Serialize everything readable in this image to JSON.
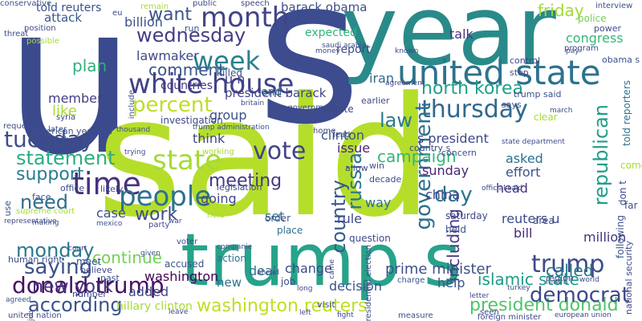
{
  "words": [
    {
      "text": "u",
      "color": "#3b4a8c",
      "vertical": false
    },
    {
      "text": "s",
      "color": "#3d4b8f",
      "vertical": false
    },
    {
      "text": "year",
      "color": "#2a8a8a",
      "vertical": false
    },
    {
      "text": "said",
      "color": "#b5de2b",
      "vertical": false
    },
    {
      "text": "trump s",
      "color": "#27a38a",
      "vertical": false
    },
    {
      "text": "told reuters",
      "color": "#3b4f8c",
      "vertical": false
    },
    {
      "text": "month",
      "color": "#414487",
      "vertical": false
    },
    {
      "text": "barack obama",
      "color": "#3d4e8a",
      "vertical": false
    },
    {
      "text": "want",
      "color": "#3a538b",
      "vertical": false
    },
    {
      "text": "wednesday",
      "color": "#433e85",
      "vertical": false
    },
    {
      "text": "week",
      "color": "#2a7f8e",
      "vertical": false
    },
    {
      "text": "united state",
      "color": "#2c728e",
      "vertical": false
    },
    {
      "text": "friday",
      "color": "#a2da37",
      "vertical": false
    },
    {
      "text": "congress",
      "color": "#34b679",
      "vertical": false
    },
    {
      "text": "white house",
      "color": "#404387",
      "vertical": false
    },
    {
      "text": "percent",
      "color": "#bddf26",
      "vertical": false
    },
    {
      "text": "north korea",
      "color": "#1fa088",
      "vertical": false
    },
    {
      "text": "thursday",
      "color": "#31688e",
      "vertical": false
    },
    {
      "text": "government",
      "color": "#2d708e",
      "vertical": true
    },
    {
      "text": "republican",
      "color": "#1f9e89",
      "vertical": true
    },
    {
      "text": "tuesday",
      "color": "#3d4d8a",
      "vertical": false
    },
    {
      "text": "state",
      "color": "#a5db36",
      "vertical": false
    },
    {
      "text": "vote",
      "color": "#414487",
      "vertical": false
    },
    {
      "text": "statement",
      "color": "#28ae80",
      "vertical": false
    },
    {
      "text": "support",
      "color": "#287c8e",
      "vertical": false
    },
    {
      "text": "time",
      "color": "#46327e",
      "vertical": false
    },
    {
      "text": "people",
      "color": "#2c718e",
      "vertical": false
    },
    {
      "text": "trump",
      "color": "#3e4c8a",
      "vertical": false
    },
    {
      "text": "donald trump",
      "color": "#471063",
      "vertical": false
    },
    {
      "text": "called",
      "color": "#2a778e",
      "vertical": false
    },
    {
      "text": "washington reuters",
      "color": "#bddf26",
      "vertical": false
    },
    {
      "text": "president donald",
      "color": "#50c46a",
      "vertical": false
    },
    {
      "text": "according",
      "color": "#3a538b",
      "vertical": false
    },
    {
      "text": "saying",
      "color": "#3b528b",
      "vertical": false
    },
    {
      "text": "new york",
      "color": "#46337e",
      "vertical": false
    },
    {
      "text": "country",
      "color": "#38598c",
      "vertical": true
    },
    {
      "text": "russia",
      "color": "#2b748e",
      "vertical": true
    },
    {
      "text": "including",
      "color": "#443983",
      "vertical": true
    },
    {
      "text": "work",
      "color": "#3e4a89",
      "vertical": false
    },
    {
      "text": "need",
      "color": "#2e6e8e",
      "vertical": false
    },
    {
      "text": "monday",
      "color": "#2a788e",
      "vertical": false
    },
    {
      "text": "day",
      "color": "#2b758e",
      "vertical": false
    },
    {
      "text": "meeting",
      "color": "#443a83",
      "vertical": false
    },
    {
      "text": "democrat",
      "color": "#3e4989",
      "vertical": false
    },
    {
      "text": "islamic state",
      "color": "#1f9a8a",
      "vertical": false
    },
    {
      "text": "plan",
      "color": "#30b07b",
      "vertical": false
    },
    {
      "text": "comment",
      "color": "#3a548c",
      "vertical": false
    },
    {
      "text": "election",
      "color": "#26828e",
      "vertical": true
    },
    {
      "text": "law",
      "color": "#2a788e",
      "vertical": false
    },
    {
      "text": "continue",
      "color": "#73d056",
      "vertical": false
    },
    {
      "text": "prime minister",
      "color": "#3b528b",
      "vertical": false
    },
    {
      "text": "talk",
      "color": "#46307e",
      "vertical": false
    },
    {
      "text": "billion",
      "color": "#3b528b",
      "vertical": false
    },
    {
      "text": "member",
      "color": "#433e85",
      "vertical": false
    },
    {
      "text": "like",
      "color": "#a8db34",
      "vertical": false
    },
    {
      "text": "attack",
      "color": "#38598c",
      "vertical": false
    },
    {
      "text": "lawmaker",
      "color": "#3e4a89",
      "vertical": false
    },
    {
      "text": "countries",
      "color": "#463480",
      "vertical": false
    },
    {
      "text": "end",
      "color": "#31678e",
      "vertical": false
    },
    {
      "text": "u n",
      "color": "#443b84",
      "vertical": false
    },
    {
      "text": "president barack",
      "color": "#414487",
      "vertical": false
    },
    {
      "text": "expected",
      "color": "#2fb47c",
      "vertical": false
    },
    {
      "text": "report",
      "color": "#3e4c8a",
      "vertical": false
    },
    {
      "text": "iran",
      "color": "#31688e",
      "vertical": false
    },
    {
      "text": "s president",
      "color": "#3f4889",
      "vertical": false
    },
    {
      "text": "clinton",
      "color": "#3b528b",
      "vertical": false
    },
    {
      "text": "issue",
      "color": "#482475",
      "vertical": false
    },
    {
      "text": "campaign",
      "color": "#34b679",
      "vertical": false
    },
    {
      "text": "sunday",
      "color": "#482576",
      "vertical": false
    },
    {
      "text": "china",
      "color": "#3e4989",
      "vertical": false
    },
    {
      "text": "rule",
      "color": "#3f4889",
      "vertical": false
    },
    {
      "text": "way",
      "color": "#2c728e",
      "vertical": false
    },
    {
      "text": "asked",
      "color": "#2c718e",
      "vertical": false
    },
    {
      "text": "head",
      "color": "#46327e",
      "vertical": false
    },
    {
      "text": "effort",
      "color": "#3b528b",
      "vertical": false
    },
    {
      "text": "reuters u",
      "color": "#3e4a89",
      "vertical": false
    },
    {
      "text": "bill",
      "color": "#482878",
      "vertical": false
    },
    {
      "text": "group",
      "color": "#3b528b",
      "vertical": false
    },
    {
      "text": "think",
      "color": "#414487",
      "vertical": false
    },
    {
      "text": "going",
      "color": "#3f4889",
      "vertical": false
    },
    {
      "text": "set",
      "color": "#2a778e",
      "vertical": false
    },
    {
      "text": "case",
      "color": "#3e4c8a",
      "vertical": false
    },
    {
      "text": "deal",
      "color": "#2c728e",
      "vertical": false
    },
    {
      "text": "change",
      "color": "#3e4989",
      "vertical": false
    },
    {
      "text": "decision",
      "color": "#3b528b",
      "vertical": false
    },
    {
      "text": "added",
      "color": "#3e4c8a",
      "vertical": false
    },
    {
      "text": "washington",
      "color": "#440154",
      "vertical": false
    },
    {
      "text": "million",
      "color": "#46327e",
      "vertical": false
    },
    {
      "text": "new",
      "color": "#2c728e",
      "vertical": false
    },
    {
      "text": "help",
      "color": "#3b528b",
      "vertical": false
    },
    {
      "text": "hillary clinton",
      "color": "#a8db34",
      "vertical": false
    },
    {
      "text": "investigation",
      "color": "#3e4989",
      "vertical": false
    },
    {
      "text": "party",
      "color": "#3f4889",
      "vertical": false
    },
    {
      "text": "order",
      "color": "#3b528b",
      "vertical": false
    },
    {
      "text": "place",
      "color": "#2c728e",
      "vertical": false
    },
    {
      "text": "question",
      "color": "#3e4989",
      "vertical": false
    },
    {
      "text": "saturday",
      "color": "#3f4889",
      "vertical": false
    },
    {
      "text": "held",
      "color": "#3b528b",
      "vertical": false
    },
    {
      "text": "area",
      "color": "#3e4c8a",
      "vertical": false
    },
    {
      "text": "human right",
      "color": "#3f4889",
      "vertical": false
    },
    {
      "text": "accused",
      "color": "#3b528b",
      "vertical": false
    },
    {
      "text": "action",
      "color": "#2c728e",
      "vertical": false
    },
    {
      "text": "job",
      "color": "#3e4989",
      "vertical": false
    },
    {
      "text": "visit",
      "color": "#3f4889",
      "vertical": false
    },
    {
      "text": "region",
      "color": "#3b528b",
      "vertical": false
    },
    {
      "text": "meet",
      "color": "#3e4c8a",
      "vertical": false
    },
    {
      "text": "believe",
      "color": "#3f4889",
      "vertical": false
    },
    {
      "text": "past",
      "color": "#3b528b",
      "vertical": false
    },
    {
      "text": "number",
      "color": "#3e4989",
      "vertical": false
    },
    {
      "text": "united nation",
      "color": "#3f4889",
      "vertical": false
    },
    {
      "text": "interview",
      "color": "#3b528b",
      "vertical": false
    },
    {
      "text": "police",
      "color": "#73d056",
      "vertical": false
    },
    {
      "text": "power",
      "color": "#3e4c8a",
      "vertical": false
    },
    {
      "text": "program",
      "color": "#3f4889",
      "vertical": false
    },
    {
      "text": "obama s",
      "color": "#3b528b",
      "vertical": false
    },
    {
      "text": "control",
      "color": "#3e4989",
      "vertical": false
    },
    {
      "text": "step",
      "color": "#3f4889",
      "vertical": false
    },
    {
      "text": "trump said",
      "color": "#3b528b",
      "vertical": false
    },
    {
      "text": "says",
      "color": "#3e4c8a",
      "vertical": false
    },
    {
      "text": "clear",
      "color": "#a8db34",
      "vertical": false
    },
    {
      "text": "told reporters",
      "color": "#2c728e",
      "vertical": true
    },
    {
      "text": "come",
      "color": "#a8db34",
      "vertical": false
    },
    {
      "text": "don t",
      "color": "#3e4989",
      "vertical": true
    },
    {
      "text": "following",
      "color": "#3b528b",
      "vertical": true
    },
    {
      "text": "far",
      "color": "#3e4c8a",
      "vertical": false
    },
    {
      "text": "national security",
      "color": "#3f4889",
      "vertical": true
    },
    {
      "text": "killed",
      "color": "#3b528b",
      "vertical": false
    },
    {
      "text": "senate",
      "color": "#3e4989",
      "vertical": false
    },
    {
      "text": "earlier",
      "color": "#3f4889",
      "vertical": false
    },
    {
      "text": "concern",
      "color": "#3b528b",
      "vertical": false
    },
    {
      "text": "country s",
      "color": "#3e4c8a",
      "vertical": false
    },
    {
      "text": "allow",
      "color": "#3f4889",
      "vertical": false
    },
    {
      "text": "win",
      "color": "#3b528b",
      "vertical": false
    },
    {
      "text": "decade",
      "color": "#3e4989",
      "vertical": false
    },
    {
      "text": "legislation",
      "color": "#3f4889",
      "vertical": false
    },
    {
      "text": "american",
      "color": "#3b528b",
      "vertical": false
    },
    {
      "text": "year old",
      "color": "#3e4c8a",
      "vertical": false
    },
    {
      "text": "hope",
      "color": "#3f4889",
      "vertical": false
    },
    {
      "text": "face",
      "color": "#3b528b",
      "vertical": false
    },
    {
      "text": "office",
      "color": "#3e4989",
      "vertical": false
    },
    {
      "text": "likely",
      "color": "#3f4889",
      "vertical": false
    },
    {
      "text": "use",
      "color": "#3b528b",
      "vertical": true
    },
    {
      "text": "supreme court",
      "color": "#a8db34",
      "vertical": false
    },
    {
      "text": "request",
      "color": "#3e4c8a",
      "vertical": false
    },
    {
      "text": "syria",
      "color": "#3f4889",
      "vertical": false
    },
    {
      "text": "later",
      "color": "#3b528b",
      "vertical": false
    },
    {
      "text": "possible",
      "color": "#a8db34",
      "vertical": false
    },
    {
      "text": "position",
      "color": "#3e4989",
      "vertical": false
    },
    {
      "text": "eu",
      "color": "#3f4889",
      "vertical": false
    },
    {
      "text": "remain",
      "color": "#a8db34",
      "vertical": false
    },
    {
      "text": "run",
      "color": "#3b528b",
      "vertical": false
    },
    {
      "text": "threat",
      "color": "#3e4c8a",
      "vertical": false
    },
    {
      "text": "working",
      "color": "#a8db34",
      "vertical": false
    },
    {
      "text": "hold",
      "color": "#a8db34",
      "vertical": false
    },
    {
      "text": "voter",
      "color": "#3f4889",
      "vertical": false
    },
    {
      "text": "lead",
      "color": "#3b528b",
      "vertical": false
    },
    {
      "text": "home",
      "color": "#3e4989",
      "vertical": false
    },
    {
      "text": "presidential election",
      "color": "#3e4c8a",
      "vertical": true
    },
    {
      "text": "seen",
      "color": "#3f4889",
      "vertical": false
    },
    {
      "text": "measure",
      "color": "#3b528b",
      "vertical": false
    },
    {
      "text": "foreign minister",
      "color": "#3e4989",
      "vertical": false
    },
    {
      "text": "european union",
      "color": "#3f4889",
      "vertical": false
    },
    {
      "text": "include",
      "color": "#3b528b",
      "vertical": true
    },
    {
      "text": "public",
      "color": "#3e4c8a",
      "vertical": false
    },
    {
      "text": "speech",
      "color": "#3f4889",
      "vertical": false
    },
    {
      "text": "saudi arabia",
      "color": "#3b528b",
      "vertical": false
    },
    {
      "text": "britain",
      "color": "#3e4989",
      "vertical": false
    },
    {
      "text": "s government",
      "color": "#3f4889",
      "vertical": false
    },
    {
      "text": "trump administration",
      "color": "#3b528b",
      "vertical": false
    },
    {
      "text": "state department",
      "color": "#3e4c8a",
      "vertical": false
    },
    {
      "text": "representative",
      "color": "#3f4889",
      "vertical": false
    },
    {
      "text": "mexico",
      "color": "#3b528b",
      "vertical": false
    },
    {
      "text": "official said",
      "color": "#3e4989",
      "vertical": false
    },
    {
      "text": "agreement",
      "color": "#3f4889",
      "vertical": false
    },
    {
      "text": "thousand",
      "color": "#3b528b",
      "vertical": false
    },
    {
      "text": "march",
      "color": "#3e4c8a",
      "vertical": false
    },
    {
      "text": "turkey",
      "color": "#3f4889",
      "vertical": false
    },
    {
      "text": "pay",
      "color": "#3b528b",
      "vertical": false
    },
    {
      "text": "known",
      "color": "#3e4989",
      "vertical": false
    },
    {
      "text": "money",
      "color": "#3f4889",
      "vertical": false
    },
    {
      "text": "return",
      "color": "#3b528b",
      "vertical": false
    },
    {
      "text": "world",
      "color": "#3e4c8a",
      "vertical": false
    },
    {
      "text": "left",
      "color": "#3f4889",
      "vertical": false
    },
    {
      "text": "ahead",
      "color": "#3b528b",
      "vertical": false
    },
    {
      "text": "long",
      "color": "#3e4989",
      "vertical": false
    },
    {
      "text": "letter",
      "color": "#3f4889",
      "vertical": false
    },
    {
      "text": "charge",
      "color": "#3b528b",
      "vertical": false
    },
    {
      "text": "came",
      "color": "#3e4c8a",
      "vertical": true
    },
    {
      "text": "july",
      "color": "#3f4889",
      "vertical": true
    },
    {
      "text": "agreed",
      "color": "#3b528b",
      "vertical": false
    },
    {
      "text": "trying",
      "color": "#3e4989",
      "vertical": false
    },
    {
      "text": "war",
      "color": "#3f4889",
      "vertical": false
    },
    {
      "text": "companie",
      "color": "#3b528b",
      "vertical": false
    },
    {
      "text": "given",
      "color": "#3e4c8a",
      "vertical": false
    },
    {
      "text": "court",
      "color": "#3f4889",
      "vertical": false
    },
    {
      "text": "making",
      "color": "#3b528b",
      "vertical": false
    },
    {
      "text": "leave",
      "color": "#3e4989",
      "vertical": false
    },
    {
      "text": "fight",
      "color": "#3f4889",
      "vertical": false
    },
    {
      "text": "conservative",
      "color": "#3b528b",
      "vertical": false
    }
  ]
}
